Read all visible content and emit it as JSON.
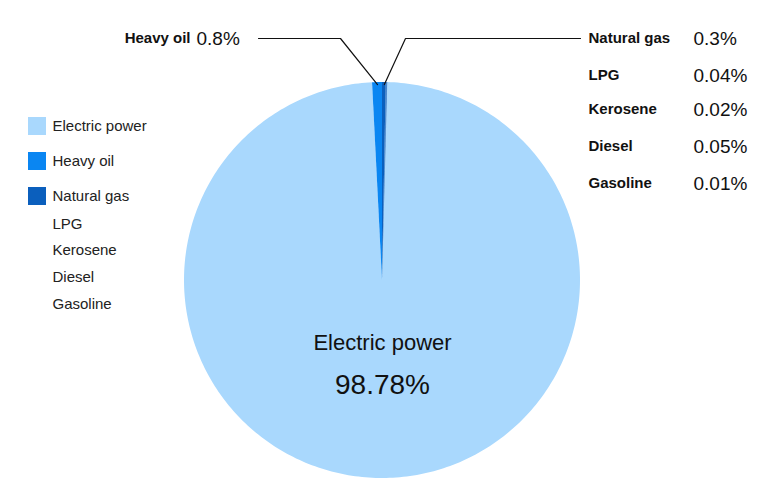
{
  "chart_data": {
    "type": "pie",
    "categories": [
      "Electric power",
      "Heavy oil",
      "Natural gas",
      "LPG",
      "Kerosene",
      "Diesel",
      "Gasoline"
    ],
    "values": [
      98.78,
      0.8,
      0.3,
      0.04,
      0.02,
      0.05,
      0.01
    ],
    "value_labels": [
      "98.78%",
      "0.8%",
      "0.3%",
      "0.04%",
      "0.02%",
      "0.05%",
      "0.01%"
    ],
    "colors": [
      "#a9d8fd",
      "#0a86f2",
      "#0b5fbd",
      "#0b5fbd",
      "#0b5fbd",
      "#0b5fbd",
      "#0b5fbd"
    ],
    "data_labels": true,
    "legend": "left"
  }
}
